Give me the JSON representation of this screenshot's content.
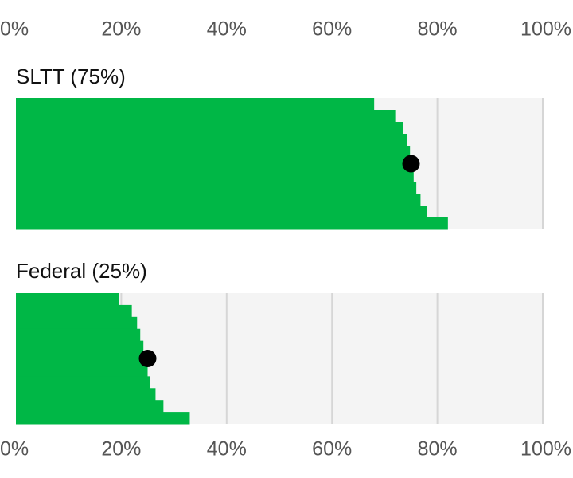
{
  "chart_data": {
    "type": "distribution",
    "xlim": [
      0,
      100
    ],
    "xticks": [
      {
        "value": 0,
        "label": "0%"
      },
      {
        "value": 20,
        "label": "20%"
      },
      {
        "value": 40,
        "label": "40%"
      },
      {
        "value": 60,
        "label": "60%"
      },
      {
        "value": 80,
        "label": "80%"
      },
      {
        "value": 100,
        "label": "100%"
      }
    ],
    "grid": true,
    "color": "#00b746",
    "panels": [
      {
        "label": "SLTT (75%)",
        "mean": 75,
        "values": [
          68,
          72,
          73.5,
          74.2,
          74.8,
          75,
          75.5,
          76,
          76.8,
          78,
          82
        ]
      },
      {
        "label": "Federal (25%)",
        "mean": 25,
        "values": [
          19.6,
          22,
          23,
          23.6,
          24.2,
          24.6,
          25,
          25.5,
          26.5,
          28,
          33
        ]
      }
    ]
  }
}
